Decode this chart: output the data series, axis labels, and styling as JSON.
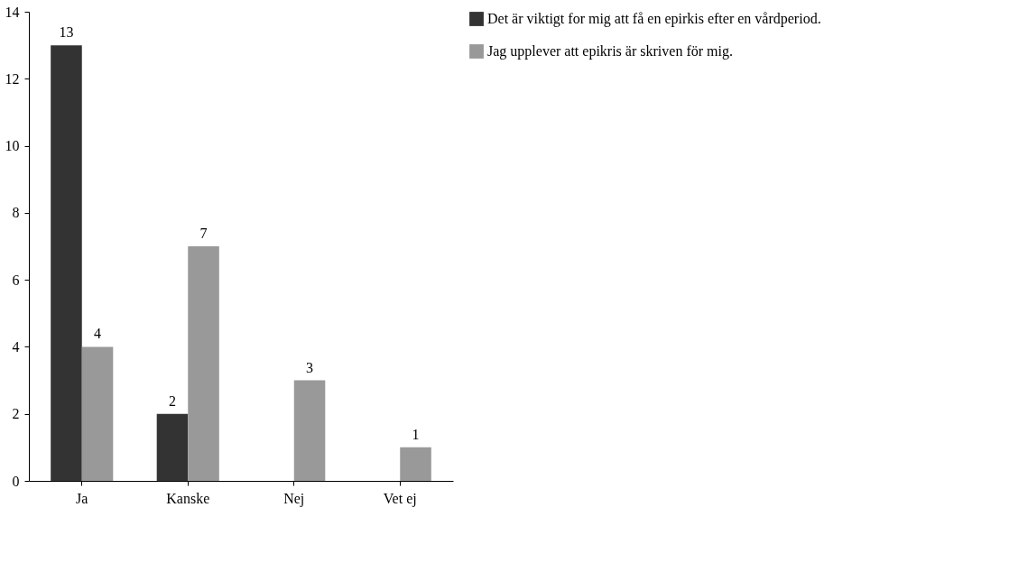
{
  "chart_data": {
    "type": "bar",
    "categories": [
      "Ja",
      "Kanske",
      "Nej",
      "Vet ej"
    ],
    "series": [
      {
        "name": "Det är viktigt for mig att få en epirkis efter en vårdperiod.",
        "color": "#333333",
        "values": [
          13,
          2,
          0,
          0
        ],
        "value_labels": [
          "13",
          "2",
          null,
          null
        ]
      },
      {
        "name": "Jag upplever att epikris är skriven för mig.",
        "color": "#999999",
        "values": [
          4,
          7,
          3,
          1
        ],
        "value_labels": [
          "4",
          "7",
          "3",
          "1"
        ]
      }
    ],
    "ylim": [
      0,
      14
    ],
    "yticks": [
      0,
      2,
      4,
      6,
      8,
      10,
      12,
      14
    ],
    "grid": false,
    "legend": "right"
  }
}
